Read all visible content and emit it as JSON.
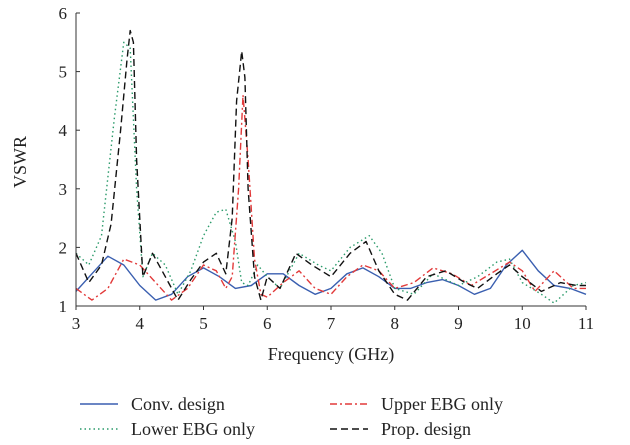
{
  "chart_data": {
    "type": "line",
    "title": "",
    "xlabel": "Frequency (GHz)",
    "ylabel": "VSWR",
    "xlim": [
      3,
      11
    ],
    "ylim": [
      1,
      6
    ],
    "x_ticks": [
      "3",
      "4",
      "5",
      "6",
      "7",
      "8",
      "9",
      "10",
      "11"
    ],
    "y_ticks": [
      "1",
      "2",
      "3",
      "4",
      "5",
      "6"
    ],
    "grid": false,
    "legend_position": "bottom",
    "series": [
      {
        "name": "Conv. design",
        "color": "#3a5fb0",
        "dash": "solid",
        "x": [
          3.0,
          3.25,
          3.5,
          3.75,
          4.0,
          4.25,
          4.5,
          4.75,
          5.0,
          5.25,
          5.5,
          5.75,
          6.0,
          6.25,
          6.5,
          6.75,
          7.0,
          7.25,
          7.5,
          7.75,
          8.0,
          8.25,
          8.5,
          8.75,
          9.0,
          9.25,
          9.5,
          9.75,
          10.0,
          10.25,
          10.5,
          10.75,
          11.0
        ],
        "y": [
          1.25,
          1.55,
          1.85,
          1.7,
          1.35,
          1.1,
          1.2,
          1.5,
          1.65,
          1.5,
          1.3,
          1.35,
          1.55,
          1.55,
          1.35,
          1.2,
          1.3,
          1.55,
          1.65,
          1.5,
          1.3,
          1.3,
          1.4,
          1.45,
          1.35,
          1.2,
          1.3,
          1.7,
          1.95,
          1.6,
          1.35,
          1.3,
          1.2
        ]
      },
      {
        "name": "Lower EBG only",
        "color": "#2a9a6a",
        "dash": "dotted",
        "x": [
          3.0,
          3.2,
          3.4,
          3.6,
          3.75,
          3.85,
          3.95,
          4.05,
          4.2,
          4.4,
          4.6,
          4.8,
          5.0,
          5.2,
          5.35,
          5.5,
          5.6,
          5.7,
          5.85,
          6.0,
          6.2,
          6.5,
          6.8,
          7.0,
          7.3,
          7.6,
          7.8,
          8.0,
          8.3,
          8.6,
          9.0,
          9.3,
          9.6,
          9.8,
          10.0,
          10.3,
          10.5,
          10.8,
          11.0
        ],
        "y": [
          1.9,
          1.7,
          2.2,
          4.2,
          5.5,
          5.4,
          3.0,
          1.5,
          1.9,
          1.7,
          1.2,
          1.6,
          2.2,
          2.6,
          2.65,
          2.1,
          1.4,
          1.35,
          1.7,
          1.5,
          1.3,
          1.9,
          1.7,
          1.6,
          2.0,
          2.2,
          1.9,
          1.3,
          1.2,
          1.55,
          1.35,
          1.5,
          1.75,
          1.8,
          1.4,
          1.2,
          1.05,
          1.35,
          1.4
        ]
      },
      {
        "name": "Upper EBG only",
        "color": "#e23a3a",
        "dash": "dash-dot",
        "x": [
          3.0,
          3.25,
          3.5,
          3.75,
          4.0,
          4.25,
          4.5,
          4.75,
          5.0,
          5.2,
          5.35,
          5.45,
          5.55,
          5.62,
          5.7,
          5.8,
          5.9,
          6.0,
          6.25,
          6.5,
          6.75,
          7.0,
          7.25,
          7.5,
          7.75,
          8.0,
          8.3,
          8.6,
          8.9,
          9.2,
          9.5,
          9.8,
          10.0,
          10.2,
          10.5,
          10.8,
          11.0
        ],
        "y": [
          1.3,
          1.1,
          1.3,
          1.8,
          1.7,
          1.4,
          1.1,
          1.3,
          1.7,
          1.6,
          1.3,
          1.5,
          3.0,
          4.6,
          3.5,
          1.8,
          1.2,
          1.15,
          1.4,
          1.6,
          1.3,
          1.2,
          1.5,
          1.7,
          1.6,
          1.3,
          1.4,
          1.65,
          1.55,
          1.35,
          1.55,
          1.75,
          1.6,
          1.25,
          1.6,
          1.3,
          1.3
        ]
      },
      {
        "name": "Prop. design",
        "color": "#111111",
        "dash": "dashed",
        "x": [
          3.0,
          3.2,
          3.4,
          3.55,
          3.7,
          3.8,
          3.85,
          3.9,
          3.95,
          4.05,
          4.2,
          4.4,
          4.6,
          4.8,
          5.0,
          5.2,
          5.35,
          5.45,
          5.52,
          5.6,
          5.65,
          5.7,
          5.8,
          5.9,
          6.0,
          6.2,
          6.45,
          6.7,
          7.0,
          7.3,
          7.55,
          7.75,
          8.0,
          8.2,
          8.5,
          8.8,
          9.1,
          9.3,
          9.6,
          9.8,
          10.0,
          10.3,
          10.6,
          10.85,
          11.0
        ],
        "y": [
          1.9,
          1.4,
          1.7,
          2.4,
          4.0,
          5.2,
          5.7,
          5.5,
          3.5,
          1.5,
          1.9,
          1.5,
          1.1,
          1.45,
          1.75,
          1.9,
          1.55,
          2.5,
          4.5,
          5.35,
          4.9,
          3.0,
          1.5,
          1.1,
          1.5,
          1.3,
          1.9,
          1.7,
          1.5,
          1.9,
          2.1,
          1.6,
          1.2,
          1.1,
          1.5,
          1.6,
          1.4,
          1.3,
          1.55,
          1.7,
          1.5,
          1.25,
          1.4,
          1.35,
          1.35
        ]
      }
    ]
  }
}
